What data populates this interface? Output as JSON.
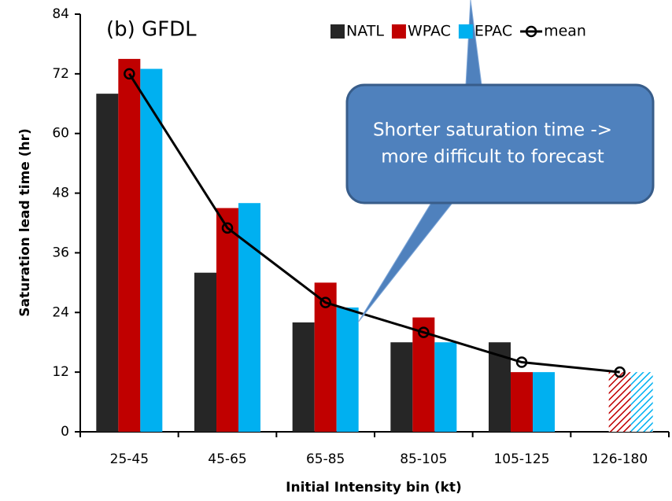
{
  "chart_data": {
    "type": "bar",
    "panel_label": "(b) GFDL",
    "xlabel": "Initial Intensity bin (kt)",
    "ylabel": "Saturation lead time (hr)",
    "annotation": [
      "Shorter saturation time ->",
      "more difficult to forecast"
    ],
    "categories": [
      "25-45",
      "45-65",
      "65-85",
      "85-105",
      "105-125",
      "126-180"
    ],
    "series": [
      {
        "name": "NATL",
        "color": "#262626",
        "values": [
          68,
          32,
          22,
          18,
          18,
          null
        ],
        "hatched": [
          false,
          false,
          false,
          false,
          false,
          false
        ]
      },
      {
        "name": "WPAC",
        "color": "#c00000",
        "values": [
          75,
          45,
          30,
          23,
          12,
          12
        ],
        "hatched": [
          false,
          false,
          false,
          false,
          false,
          true
        ]
      },
      {
        "name": "EPAC",
        "color": "#00b0f0",
        "values": [
          73,
          46,
          25,
          18,
          12,
          12
        ],
        "hatched": [
          false,
          false,
          false,
          false,
          false,
          true
        ]
      },
      {
        "name": "mean",
        "color": "#000000",
        "type": "line",
        "values": [
          72,
          41,
          26,
          20,
          14,
          12
        ]
      }
    ],
    "ylim": [
      0,
      84
    ],
    "yticks": [
      0,
      12,
      24,
      36,
      48,
      60,
      72,
      84
    ],
    "grid": false,
    "legend": "top-right"
  }
}
